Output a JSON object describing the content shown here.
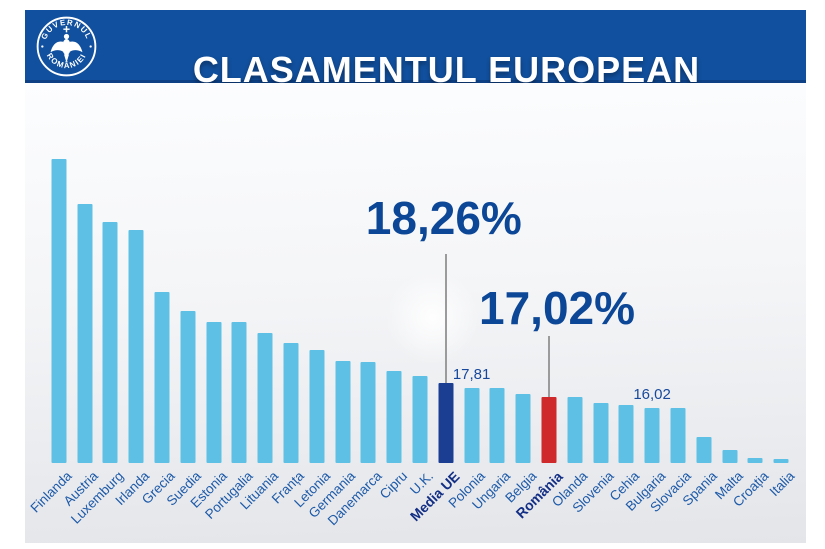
{
  "header": {
    "title": "CLASAMENTUL EUROPEAN",
    "logo": {
      "top_text": "GUVERNUL",
      "bottom_text": "ROMÂNIEI"
    }
  },
  "chart_data": {
    "type": "bar",
    "title": "CLASAMENTUL EUROPEAN",
    "unit": "%",
    "sort": "descending",
    "grid": false,
    "legend": false,
    "ylim": [
      11,
      40
    ],
    "categories": [
      "Finlanda",
      "Austria",
      "Luxemburg",
      "Irlanda",
      "Grecia",
      "Suedia",
      "Estonia",
      "Portugalia",
      "Lituania",
      "Franța",
      "Letonia",
      "Germania",
      "Danemarca",
      "Cipru",
      "U.K.",
      "Media UE",
      "Polonia",
      "Ungaria",
      "Belgia",
      "România",
      "Olanda",
      "Slovenia",
      "Cehia",
      "Bulgaria",
      "Slovacia",
      "Spania",
      "Malta",
      "Croația",
      "Italia"
    ],
    "values": [
      38.5,
      34.4,
      32.8,
      32.1,
      26.5,
      24.8,
      23.8,
      23.8,
      22.8,
      21.9,
      21.2,
      20.2,
      20.1,
      19.35,
      18.9,
      18.26,
      17.81,
      17.75,
      17.25,
      17.02,
      17.0,
      16.45,
      16.25,
      16.02,
      15.95,
      13.4,
      12.2,
      11.5,
      11.4
    ],
    "emphasis": {
      "eu_average": "Media UE",
      "romania": "România"
    },
    "annotations": [
      {
        "text": "18,26%",
        "target": "Media UE"
      },
      {
        "text": "17,02%",
        "target": "România"
      }
    ],
    "bar_value_labels": [
      {
        "text": "17,81",
        "target": "Polonia"
      },
      {
        "text": "16,02",
        "target": "Bulgaria"
      }
    ]
  },
  "colors": {
    "header_bg": "#11509e",
    "bar_default": "#5fc0e5",
    "bar_eu_average": "#1b3e92",
    "bar_romania": "#d0292b",
    "label_text": "#1d5aa9",
    "label_emphasis": "#132f85",
    "annotation_text": "#0c4696",
    "leader_line": "#9b9b9b",
    "panel_bg": "#eceef1"
  }
}
